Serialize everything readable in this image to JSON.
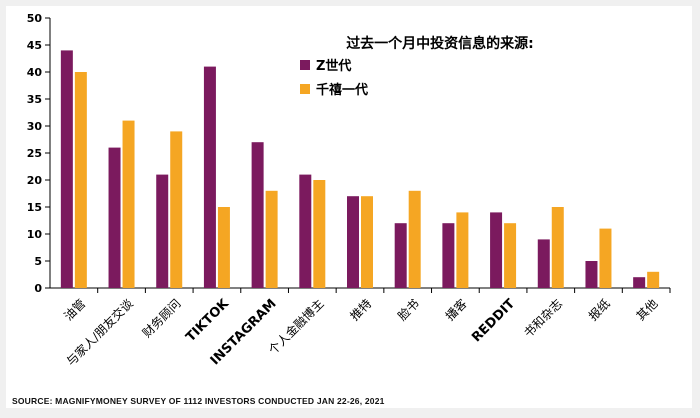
{
  "chart_data": {
    "type": "bar",
    "title": "过去一个月中投资信息的来源:",
    "categories": [
      "油管",
      "与家人/朋友交谈",
      "财务顾问",
      "TIKTOK",
      "INSTAGRAM",
      "个人金融博主",
      "推特",
      "脸书",
      "播客",
      "REDDIT",
      "书和杂志",
      "报纸",
      "其他"
    ],
    "series": [
      {
        "name": "Z世代",
        "color": "#7b1a5e",
        "values": [
          44,
          26,
          21,
          41,
          27,
          21,
          17,
          12,
          12,
          14,
          9,
          5,
          2
        ]
      },
      {
        "name": "千禧一代",
        "color": "#f5a623",
        "values": [
          40,
          31,
          29,
          15,
          18,
          20,
          17,
          18,
          14,
          12,
          15,
          11,
          3
        ]
      }
    ],
    "ylim": [
      0,
      50
    ],
    "yticks": [
      0,
      5,
      10,
      15,
      20,
      25,
      30,
      35,
      40,
      45,
      50
    ],
    "grid": false,
    "legend_position": "top-right"
  },
  "source": "SOURCE: MAGNIFYMONEY SURVEY OF 1112 INVESTORS CONDUCTED JAN 22-26, 2021"
}
